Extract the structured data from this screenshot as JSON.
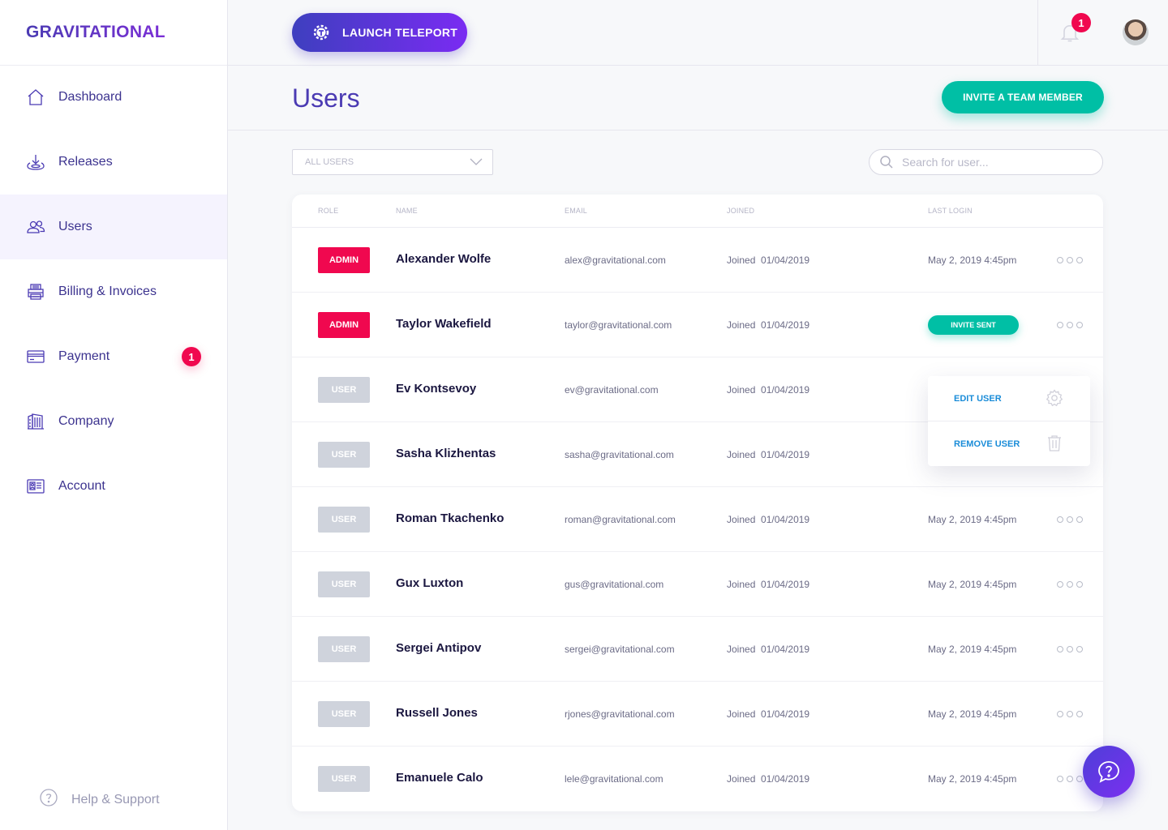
{
  "brand": {
    "logo_text": "GRAVITATIONAL"
  },
  "sidebar": {
    "items": [
      {
        "label": "Dashboard",
        "icon": "home-icon"
      },
      {
        "label": "Releases",
        "icon": "download-icon"
      },
      {
        "label": "Users",
        "icon": "users-icon",
        "active": true
      },
      {
        "label": "Billing & Invoices",
        "icon": "printer-icon"
      },
      {
        "label": "Payment",
        "icon": "credit-card-icon",
        "badge": "1"
      },
      {
        "label": "Company",
        "icon": "building-icon"
      },
      {
        "label": "Account",
        "icon": "id-card-icon"
      }
    ],
    "help_label": "Help & Support"
  },
  "topbar": {
    "launch_label": "LAUNCH TELEPORT",
    "notification_count": "1"
  },
  "header": {
    "title": "Users",
    "invite_label": "INVITE A TEAM MEMBER"
  },
  "filters": {
    "select_value": "ALL USERS",
    "search_placeholder": "Search for user..."
  },
  "table": {
    "columns": [
      "ROLE",
      "NAME",
      "EMAIL",
      "JOINED",
      "LAST LOGIN"
    ],
    "rows": [
      {
        "role": "ADMIN",
        "name": "Alexander Wolfe",
        "email": "alex@gravitational.com",
        "joined": "Joined  01/04/2019",
        "last_login": "May 2, 2019 4:45pm"
      },
      {
        "role": "ADMIN",
        "name": "Taylor Wakefield",
        "email": "taylor@gravitational.com",
        "joined": "Joined  01/04/2019",
        "last_login": "INVITE SENT"
      },
      {
        "role": "USER",
        "name": "Ev Kontsevoy",
        "email": "ev@gravitational.com",
        "joined": "Joined  01/04/2019",
        "last_login": ""
      },
      {
        "role": "USER",
        "name": "Sasha Klizhentas",
        "email": "sasha@gravitational.com",
        "joined": "Joined  01/04/2019",
        "last_login": ""
      },
      {
        "role": "USER",
        "name": "Roman Tkachenko",
        "email": "roman@gravitational.com",
        "joined": "Joined  01/04/2019",
        "last_login": "May 2, 2019 4:45pm"
      },
      {
        "role": "USER",
        "name": "Gux Luxton",
        "email": "gus@gravitational.com",
        "joined": "Joined  01/04/2019",
        "last_login": "May 2, 2019 4:45pm"
      },
      {
        "role": "USER",
        "name": "Sergei Antipov",
        "email": "sergei@gravitational.com",
        "joined": "Joined  01/04/2019",
        "last_login": "May 2, 2019 4:45pm"
      },
      {
        "role": "USER",
        "name": "Russell Jones",
        "email": "rjones@gravitational.com",
        "joined": "Joined  01/04/2019",
        "last_login": "May 2, 2019 4:45pm"
      },
      {
        "role": "USER",
        "name": "Emanuele Calo",
        "email": "lele@gravitational.com",
        "joined": "Joined  01/04/2019",
        "last_login": "May 2, 2019 4:45pm"
      }
    ]
  },
  "context_menu": {
    "edit_label": "EDIT USER",
    "remove_label": "REMOVE USER"
  },
  "colors": {
    "accent": "#4b3bb3",
    "teal": "#00bfa5",
    "danger": "#f0084f"
  }
}
